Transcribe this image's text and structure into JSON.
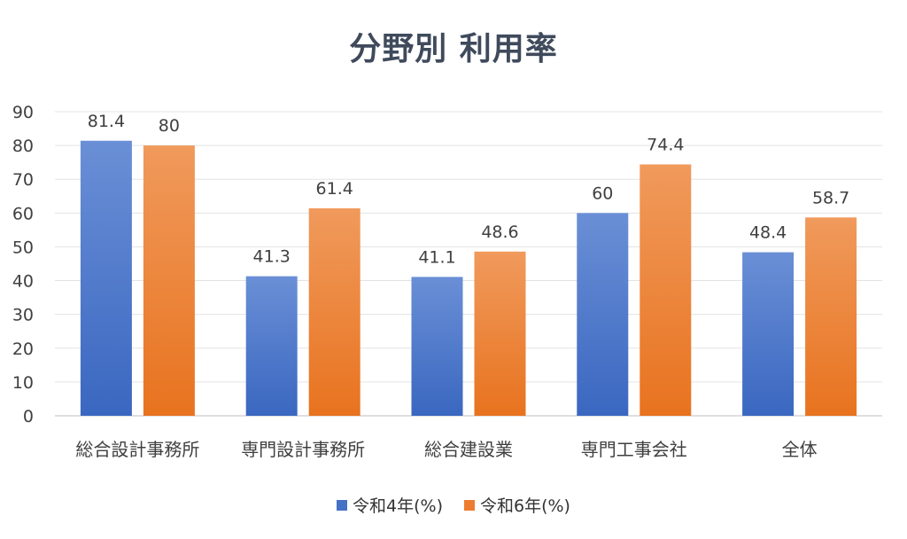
{
  "chart_data": {
    "type": "bar",
    "title": "分野別 利用率",
    "categories": [
      "総合設計事務所",
      "専門設計事務所",
      "総合建設業",
      "専門工事会社",
      "全体"
    ],
    "series": [
      {
        "name": "令和4年(%)",
        "values": [
          81.4,
          41.3,
          41.1,
          60,
          48.4
        ],
        "labels": [
          "81.4",
          "41.3",
          "41.1",
          "60",
          "48.4"
        ],
        "color": "#4472c4"
      },
      {
        "name": "令和6年(%)",
        "values": [
          80,
          61.4,
          48.6,
          74.4,
          58.7
        ],
        "labels": [
          "80",
          "61.4",
          "48.6",
          "74.4",
          "58.7"
        ],
        "color": "#ed7d31"
      }
    ],
    "ylim": [
      0,
      90
    ],
    "yticks": [
      "0",
      "10",
      "20",
      "30",
      "40",
      "50",
      "60",
      "70",
      "80",
      "90"
    ],
    "xlabel": "",
    "ylabel": "",
    "grid": true,
    "legend_position": "bottom"
  }
}
